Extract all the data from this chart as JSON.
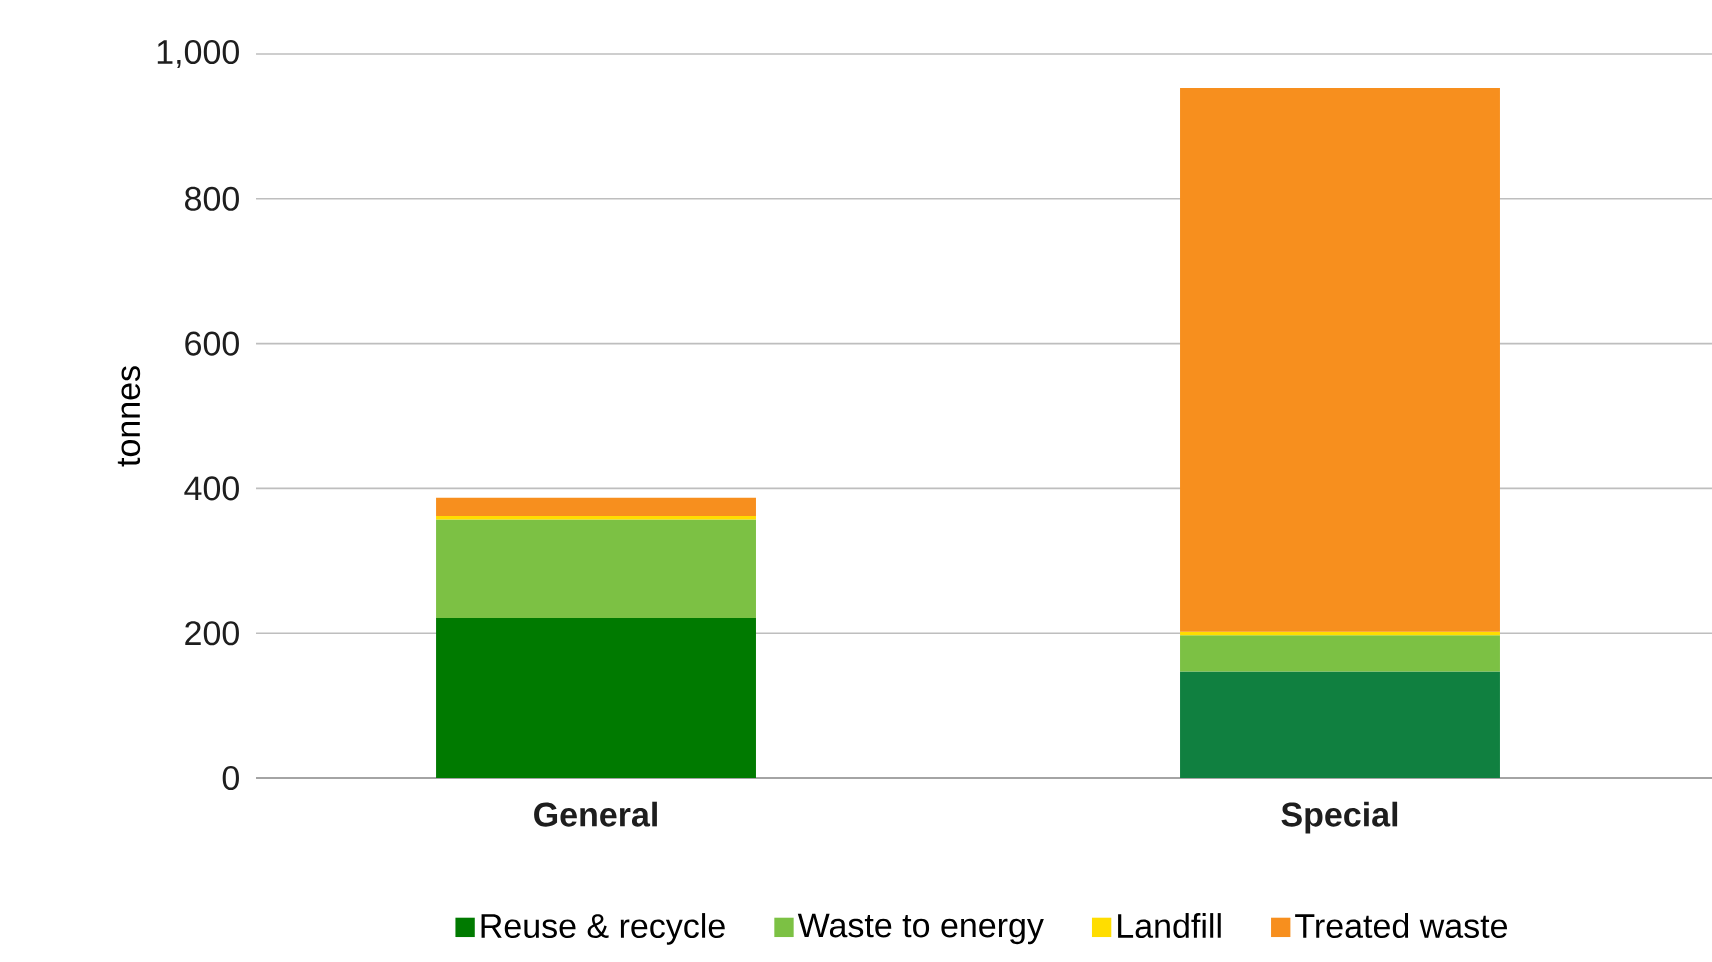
{
  "chart_data": {
    "type": "bar",
    "stacked": true,
    "ylabel": "tonnes",
    "categories": [
      "General",
      "Special"
    ],
    "series": [
      {
        "name": "Reuse & recycle",
        "color": "#007a00",
        "colors": [
          "#007a00",
          "#108040"
        ],
        "values": [
          221,
          147
        ]
      },
      {
        "name": "Waste to energy",
        "color": "#7cc144",
        "values": [
          136,
          50
        ]
      },
      {
        "name": "Landfill",
        "color": "#ffdd00",
        "values": [
          5,
          5
        ]
      },
      {
        "name": "Treated waste",
        "color": "#f78f1e",
        "values": [
          25,
          751
        ]
      }
    ],
    "ylim": [
      0,
      1000
    ],
    "yticks": [
      0,
      200,
      400,
      600,
      800,
      {
        "value": 1000,
        "label": "1,000"
      }
    ],
    "grid": "y",
    "legend": "bottom"
  }
}
